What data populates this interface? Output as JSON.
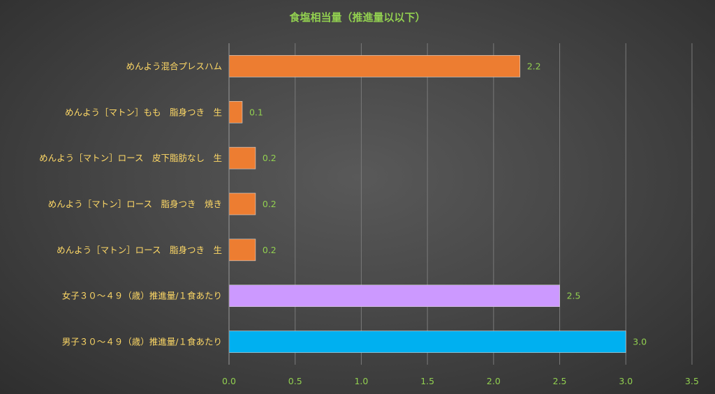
{
  "chart_data": {
    "type": "bar",
    "orientation": "horizontal",
    "title": "食塩相当量（推進量以以下）",
    "categories": [
      "めんよう混合プレスハム",
      "めんよう［マトン］もも　脂身つき　生",
      "めんよう［マトン］ロース　皮下脂肪なし　生",
      "めんよう［マトン］ロース　脂身つき　焼き",
      "めんよう［マトン］ロース　脂身つき　生",
      "女子３０～４９（歳）推進量/１食あたり",
      "男子３０～４９（歳）推進量/１食あたり"
    ],
    "values": [
      2.2,
      0.1,
      0.2,
      0.2,
      0.2,
      2.5,
      3.0
    ],
    "data_labels": [
      "2.2",
      "0.1",
      "0.2",
      "0.2",
      "0.2",
      "2.5",
      "3.0"
    ],
    "colors": [
      "#ed7d31",
      "#ed7d31",
      "#ed7d31",
      "#ed7d31",
      "#ed7d31",
      "#cc99ff",
      "#00b0f0"
    ],
    "xlim": [
      0,
      3.5
    ],
    "x_ticks": [
      "0.0",
      "0.5",
      "1.0",
      "1.5",
      "2.0",
      "2.5",
      "3.0",
      "3.5"
    ],
    "grid": true,
    "legend": "none"
  }
}
